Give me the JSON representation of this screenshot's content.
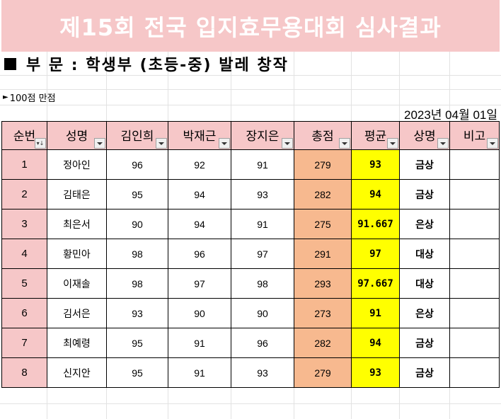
{
  "title": "제15회 전국 입지효무용대회 심사결과",
  "section": "부 문 : 학생부 (초등-중) 발레 창작",
  "note": "100점 만점",
  "date": "2023년 04월 01일",
  "columns": [
    "순번",
    "성명",
    "김인희",
    "박재근",
    "장지은",
    "총점",
    "평균",
    "상명",
    "비고"
  ],
  "rows": [
    {
      "seq": "1",
      "name": "정아인",
      "s1": "96",
      "s2": "92",
      "s3": "91",
      "total": "279",
      "avg": "93",
      "award": "금상",
      "note": ""
    },
    {
      "seq": "2",
      "name": "김태은",
      "s1": "95",
      "s2": "94",
      "s3": "93",
      "total": "282",
      "avg": "94",
      "award": "금상",
      "note": ""
    },
    {
      "seq": "3",
      "name": "최은서",
      "s1": "90",
      "s2": "94",
      "s3": "91",
      "total": "275",
      "avg": "91.667",
      "award": "은상",
      "note": ""
    },
    {
      "seq": "4",
      "name": "황민아",
      "s1": "98",
      "s2": "96",
      "s3": "97",
      "total": "291",
      "avg": "97",
      "award": "대상",
      "note": ""
    },
    {
      "seq": "5",
      "name": "이재솔",
      "s1": "98",
      "s2": "97",
      "s3": "98",
      "total": "293",
      "avg": "97.667",
      "award": "대상",
      "note": ""
    },
    {
      "seq": "6",
      "name": "김서은",
      "s1": "93",
      "s2": "90",
      "s3": "90",
      "total": "273",
      "avg": "91",
      "award": "은상",
      "note": ""
    },
    {
      "seq": "7",
      "name": "최예령",
      "s1": "95",
      "s2": "91",
      "s3": "96",
      "total": "282",
      "avg": "94",
      "award": "금상",
      "note": ""
    },
    {
      "seq": "8",
      "name": "신지안",
      "s1": "95",
      "s2": "91",
      "s3": "93",
      "total": "279",
      "avg": "93",
      "award": "금상",
      "note": ""
    }
  ],
  "colors": {
    "header_pink": "#f6c7c8",
    "total_orange": "#f7b98f",
    "avg_yellow": "#ffff00",
    "title_text": "#ffffff"
  },
  "icons": {
    "filter_dropdown": "filter-dropdown-icon",
    "sorted_filter": "sort-filter-icon",
    "square_bullet": "square-bullet-icon",
    "note_marker": "triangle-right-icon"
  }
}
